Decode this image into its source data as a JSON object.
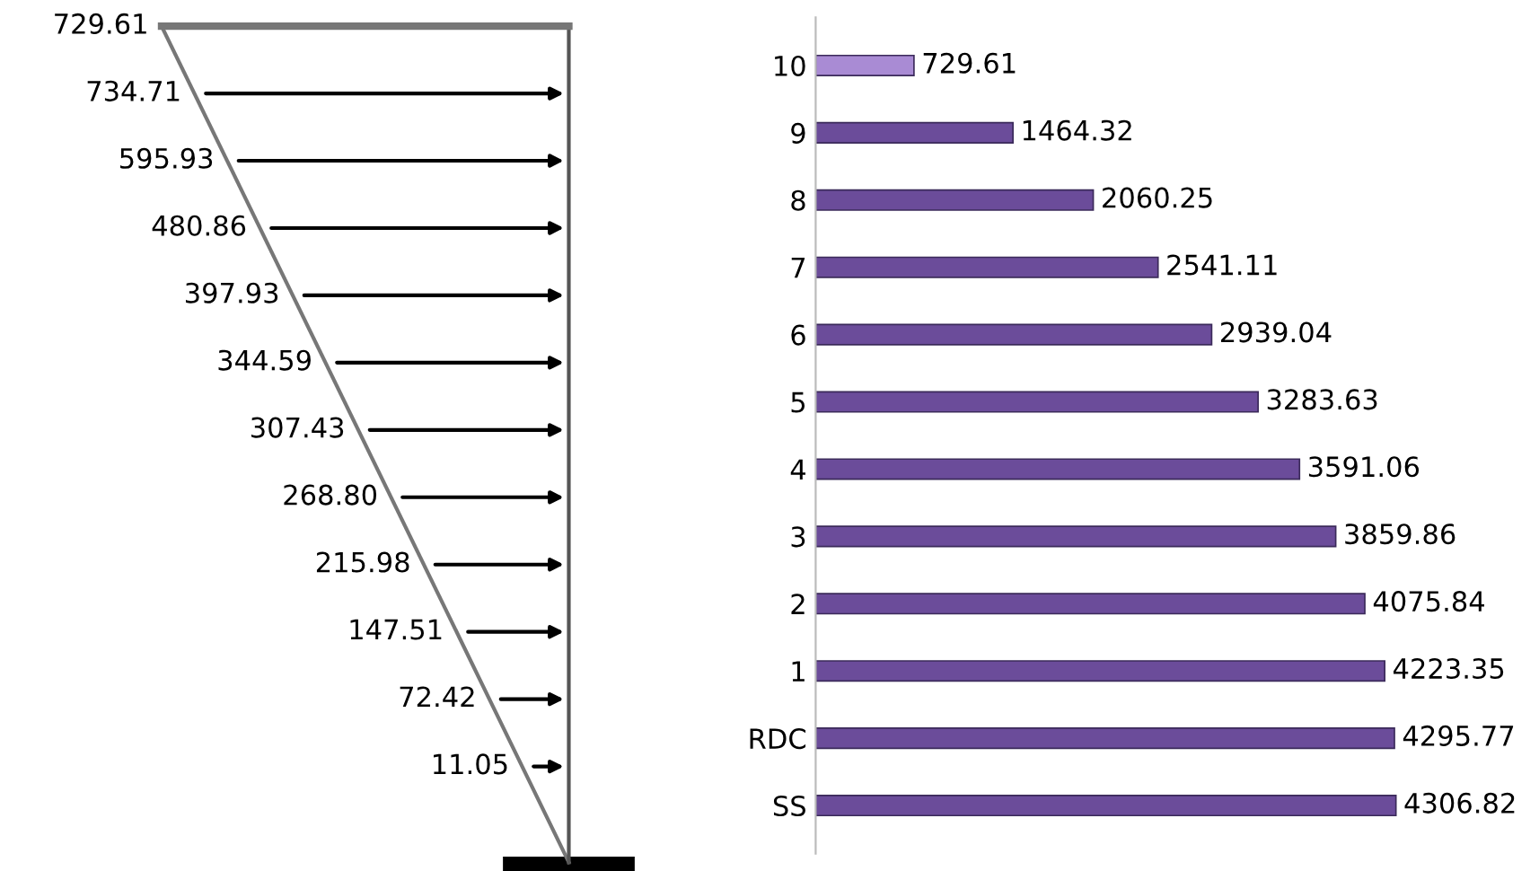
{
  "chart_data": [
    {
      "type": "other",
      "categories": [
        null,
        null,
        null,
        null,
        null,
        null,
        null,
        null,
        null,
        null,
        null,
        null
      ],
      "values": [
        729.61,
        734.71,
        595.93,
        480.86,
        397.93,
        344.59,
        307.43,
        268.8,
        215.98,
        147.51,
        72.42,
        11.05
      ],
      "value_labels": [
        "729.61",
        "734.71",
        "595.93",
        "480.86",
        "397.93",
        "344.59",
        "307.43",
        "268.80",
        "215.98",
        "147.51",
        "72.42",
        "11.05"
      ]
    },
    {
      "type": "bar",
      "orientation": "horizontal",
      "categories": [
        "10",
        "9",
        "8",
        "7",
        "6",
        "5",
        "4",
        "3",
        "2",
        "1",
        "RDC",
        "SS"
      ],
      "values": [
        729.61,
        1464.32,
        2060.25,
        2541.11,
        2939.04,
        3283.63,
        3591.06,
        3859.86,
        4075.84,
        4223.35,
        4295.77,
        4306.82
      ],
      "colors": [
        "#a98bd4",
        "#6b4c9a",
        "#6b4c9a",
        "#6b4c9a",
        "#6b4c9a",
        "#6b4c9a",
        "#6b4c9a",
        "#6b4c9a",
        "#6b4c9a",
        "#6b4c9a",
        "#6b4c9a",
        "#6b4c9a"
      ],
      "data_labels": true
    }
  ]
}
